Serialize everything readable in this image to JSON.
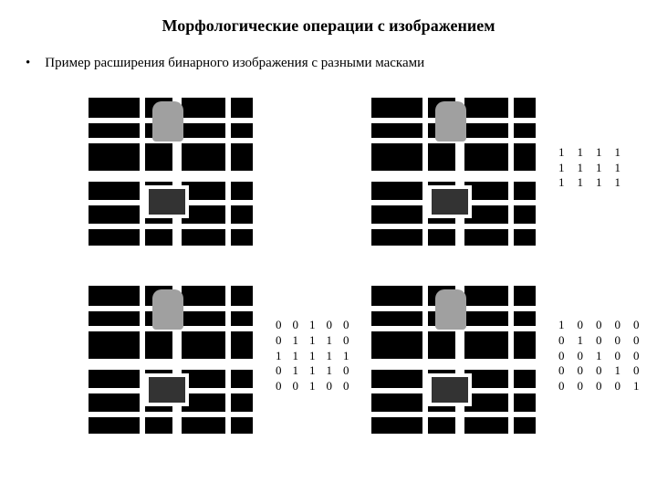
{
  "title": "Морфологические операции с изображением",
  "bullet_text": "Пример расширения бинарного изображения с разными масками",
  "matrices": {
    "top_right": {
      "rows": 3,
      "cols": 4,
      "values": [
        [
          1,
          1,
          1,
          1
        ],
        [
          1,
          1,
          1,
          1
        ],
        [
          1,
          1,
          1,
          1
        ]
      ]
    },
    "bottom_left": {
      "rows": 5,
      "cols": 5,
      "values": [
        [
          0,
          0,
          1,
          0,
          0
        ],
        [
          0,
          1,
          1,
          1,
          0
        ],
        [
          1,
          1,
          1,
          1,
          1
        ],
        [
          0,
          1,
          1,
          1,
          0
        ],
        [
          0,
          0,
          1,
          0,
          0
        ]
      ]
    },
    "bottom_right": {
      "rows": 5,
      "cols": 5,
      "values": [
        [
          1,
          0,
          0,
          0,
          0
        ],
        [
          0,
          1,
          0,
          0,
          0
        ],
        [
          0,
          0,
          1,
          0,
          0
        ],
        [
          0,
          0,
          0,
          1,
          0
        ],
        [
          0,
          0,
          0,
          0,
          1
        ]
      ]
    }
  },
  "colors": {
    "bg": "#ffffff",
    "text": "#000000",
    "img_bg": "#000000",
    "img_fg": "#ffffff"
  },
  "font": "Times New Roman"
}
